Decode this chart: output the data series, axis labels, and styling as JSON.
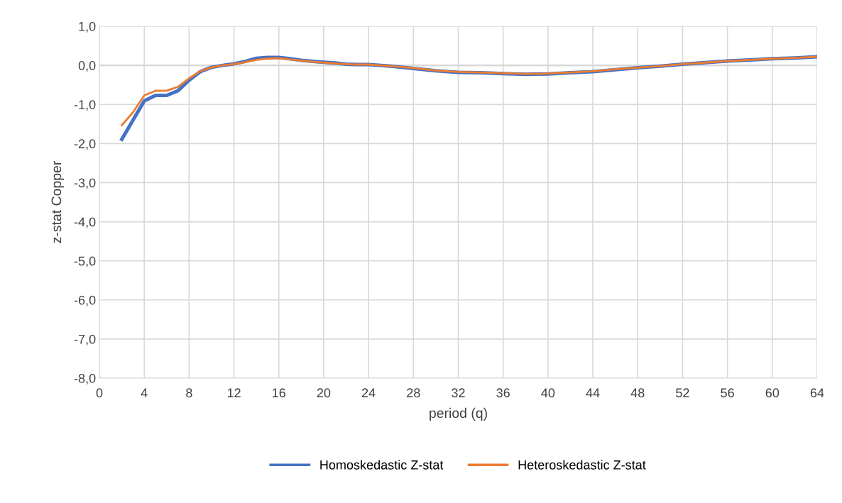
{
  "chart_data": {
    "type": "line",
    "xlabel": "period (q)",
    "ylabel": "z-stat Copper",
    "x": [
      2,
      3,
      4,
      5,
      6,
      7,
      8,
      9,
      10,
      11,
      12,
      13,
      14,
      15,
      16,
      17,
      18,
      19,
      20,
      21,
      22,
      23,
      24,
      26,
      28,
      30,
      32,
      34,
      36,
      38,
      40,
      42,
      44,
      46,
      48,
      50,
      52,
      54,
      56,
      58,
      60,
      62,
      64
    ],
    "series": [
      {
        "name": "Homoskedastic Z-stat",
        "color": "#4472c4",
        "values": [
          -1.89,
          -1.4,
          -0.91,
          -0.77,
          -0.77,
          -0.65,
          -0.38,
          -0.16,
          -0.05,
          0.0,
          0.04,
          0.1,
          0.18,
          0.2,
          0.2,
          0.17,
          0.13,
          0.1,
          0.08,
          0.06,
          0.03,
          0.02,
          0.02,
          -0.02,
          -0.08,
          -0.14,
          -0.18,
          -0.19,
          -0.21,
          -0.23,
          -0.22,
          -0.19,
          -0.16,
          -0.11,
          -0.06,
          -0.02,
          0.03,
          0.07,
          0.11,
          0.14,
          0.17,
          0.19,
          0.22
        ]
      },
      {
        "name": "Heteroskedastic Z-stat",
        "color": "#ed7d31",
        "values": [
          -1.53,
          -1.2,
          -0.77,
          -0.65,
          -0.65,
          -0.55,
          -0.33,
          -0.15,
          -0.05,
          0.0,
          0.03,
          0.08,
          0.14,
          0.17,
          0.18,
          0.15,
          0.12,
          0.09,
          0.07,
          0.05,
          0.03,
          0.02,
          0.02,
          -0.02,
          -0.07,
          -0.13,
          -0.17,
          -0.18,
          -0.2,
          -0.22,
          -0.21,
          -0.18,
          -0.15,
          -0.1,
          -0.06,
          -0.02,
          0.03,
          0.07,
          0.11,
          0.14,
          0.17,
          0.19,
          0.22
        ]
      }
    ],
    "xlim": [
      0,
      64
    ],
    "xticks": [
      0,
      4,
      8,
      12,
      16,
      20,
      24,
      28,
      32,
      36,
      40,
      44,
      48,
      52,
      56,
      60,
      64
    ],
    "ylim": [
      -8,
      1
    ],
    "yticks": [
      {
        "value": -8,
        "label": "-8,0"
      },
      {
        "value": -7,
        "label": "-7,0"
      },
      {
        "value": -6,
        "label": "-6,0"
      },
      {
        "value": -5,
        "label": "-5,0"
      },
      {
        "value": -4,
        "label": "-4,0"
      },
      {
        "value": -3,
        "label": "-3,0"
      },
      {
        "value": -2,
        "label": "-2,0"
      },
      {
        "value": -1,
        "label": "-1,0"
      },
      {
        "value": 0,
        "label": "0,0"
      },
      {
        "value": 1,
        "label": "1,0"
      }
    ],
    "grid": true,
    "legend": "bottom",
    "marker": "none",
    "line_style": "solid"
  }
}
